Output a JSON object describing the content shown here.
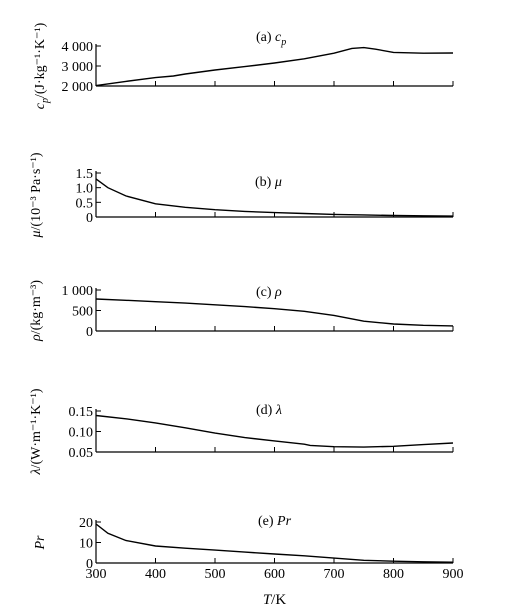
{
  "chart_data": [
    {
      "type": "line",
      "title_prefix": "(a) ",
      "title_symbol": "c",
      "title_sub": "p",
      "y_label": {
        "sym": "c",
        "sub": "p",
        "unit": "/(J·kg⁻¹·K⁻¹)"
      },
      "ylim": [
        2000,
        4000
      ],
      "yticks": [
        2000,
        3000,
        4000
      ],
      "yticklabels": [
        "2 000",
        "3 000",
        "4 000"
      ],
      "xlim": [
        300,
        900
      ],
      "series": [
        {
          "x": [
            300,
            350,
            400,
            430,
            450,
            500,
            550,
            600,
            650,
            700,
            730,
            750,
            770,
            800,
            850,
            900
          ],
          "values": [
            2020,
            2230,
            2420,
            2500,
            2600,
            2800,
            2970,
            3150,
            3360,
            3640,
            3880,
            3920,
            3840,
            3680,
            3640,
            3650
          ]
        }
      ]
    },
    {
      "type": "line",
      "title_prefix": "(b) ",
      "title_symbol": "μ",
      "y_label": {
        "sym": "μ",
        "unit": "/(10⁻³ Pa·s⁻¹)"
      },
      "ylim": [
        0,
        1.5
      ],
      "yticks": [
        0,
        0.5,
        1.0,
        1.5
      ],
      "yticklabels": [
        "0",
        "0.5",
        "1.0",
        "1.5"
      ],
      "xlim": [
        300,
        900
      ],
      "series": [
        {
          "x": [
            300,
            320,
            350,
            400,
            450,
            500,
            550,
            600,
            650,
            700,
            750,
            800,
            850,
            900
          ],
          "values": [
            1.3,
            1.0,
            0.72,
            0.45,
            0.33,
            0.25,
            0.19,
            0.15,
            0.12,
            0.09,
            0.07,
            0.05,
            0.04,
            0.03
          ]
        }
      ]
    },
    {
      "type": "line",
      "title_prefix": "(c) ",
      "title_symbol": "ρ",
      "y_label": {
        "sym": "ρ",
        "unit": "/(kg·m⁻³)"
      },
      "ylim": [
        0,
        1000
      ],
      "yticks": [
        0,
        500,
        1000
      ],
      "yticklabels": [
        "0",
        "500",
        "1 000"
      ],
      "xlim": [
        300,
        900
      ],
      "series": [
        {
          "x": [
            300,
            350,
            400,
            450,
            500,
            550,
            600,
            650,
            700,
            750,
            800,
            850,
            900
          ],
          "values": [
            780,
            750,
            715,
            680,
            640,
            595,
            545,
            480,
            380,
            240,
            170,
            140,
            125
          ]
        }
      ]
    },
    {
      "type": "line",
      "title_prefix": "(d) ",
      "title_symbol": "λ",
      "y_label": {
        "sym": "λ",
        "unit": "/(W·m⁻¹·K⁻¹)"
      },
      "ylim": [
        0.05,
        0.15
      ],
      "yticks": [
        0.05,
        0.1,
        0.15
      ],
      "yticklabels": [
        "0.05",
        "0.10",
        "0.15"
      ],
      "xlim": [
        300,
        900
      ],
      "series": [
        {
          "x": [
            300,
            350,
            400,
            450,
            500,
            550,
            600,
            650,
            660,
            700,
            750,
            800,
            850,
            900
          ],
          "values": [
            0.139,
            0.131,
            0.121,
            0.109,
            0.096,
            0.085,
            0.077,
            0.069,
            0.066,
            0.063,
            0.062,
            0.064,
            0.068,
            0.072
          ]
        }
      ]
    },
    {
      "type": "line",
      "title_prefix": "(e) ",
      "title_symbol": "Pr",
      "y_label": {
        "sym": "Pr",
        "unit": ""
      },
      "ylim": [
        0,
        20
      ],
      "yticks": [
        0,
        10,
        20
      ],
      "yticklabels": [
        "0",
        "10",
        "20"
      ],
      "xlim": [
        300,
        900
      ],
      "xticks": [
        300,
        400,
        500,
        600,
        700,
        800,
        900
      ],
      "xticklabels": [
        "300",
        "400",
        "500",
        "600",
        "700",
        "800",
        "900"
      ],
      "x_label": {
        "sym": "T",
        "unit": "/K"
      },
      "series": [
        {
          "x": [
            300,
            320,
            350,
            400,
            450,
            500,
            550,
            600,
            650,
            700,
            750,
            800,
            850,
            900
          ],
          "values": [
            19,
            14.5,
            11,
            8.3,
            7.2,
            6.3,
            5.3,
            4.4,
            3.5,
            2.4,
            1.3,
            0.9,
            0.6,
            0.4
          ]
        }
      ]
    }
  ]
}
